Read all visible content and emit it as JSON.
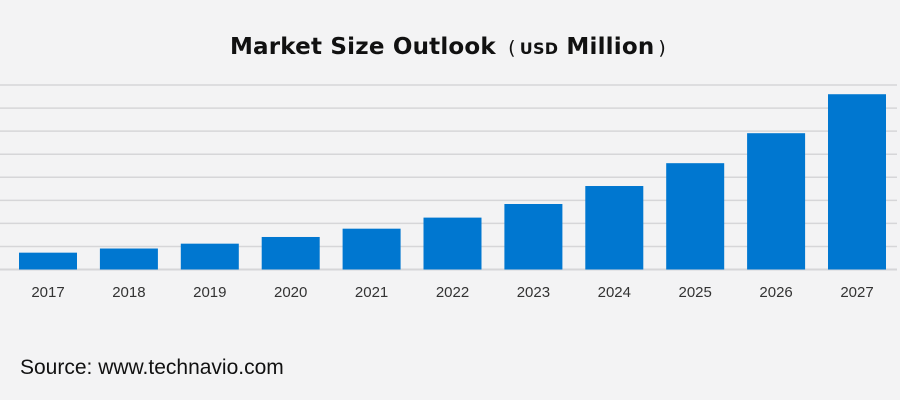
{
  "chart_data": {
    "type": "bar",
    "title": "Market Size Outlook",
    "title_unit_prefix": "USD",
    "title_unit": "Million",
    "xlabel": "",
    "ylabel": "",
    "categories": [
      "2017",
      "2018",
      "2019",
      "2020",
      "2021",
      "2022",
      "2023",
      "2024",
      "2025",
      "2026",
      "2027"
    ],
    "values": [
      0.73,
      0.91,
      1.12,
      1.41,
      1.77,
      2.25,
      2.84,
      3.62,
      4.61,
      5.91,
      7.6
    ],
    "value_units_note": "relative (one unit = one gridline interval; no y-axis labels printed)",
    "ylim": [
      0,
      8
    ],
    "grid": true,
    "bar_color": "#0077d0",
    "grid_color": "#d6d6d8",
    "background": "#f3f3f4"
  },
  "source": "Source: www.technavio.com"
}
